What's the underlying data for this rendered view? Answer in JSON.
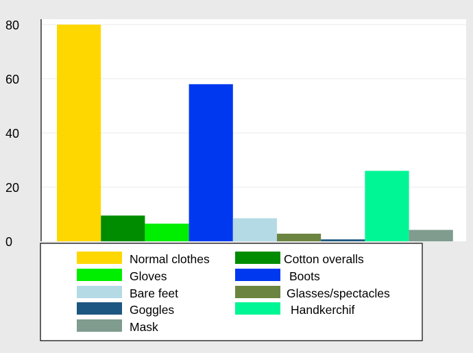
{
  "chart_data": {
    "type": "bar",
    "title": "",
    "xlabel": "",
    "ylabel": "",
    "ylim": [
      0,
      82
    ],
    "yticks": [
      0,
      20,
      40,
      60,
      80
    ],
    "grid": true,
    "legend_position": "bottom",
    "series": [
      {
        "name": "Normal clothes",
        "value": 80,
        "color": "#FFD700"
      },
      {
        "name": "Cotton overalls",
        "value": 9.5,
        "color": "#008C00"
      },
      {
        "name": "Gloves",
        "value": 6.5,
        "color": "#00EE00"
      },
      {
        "name": "Boots",
        "value": 58,
        "color": "#0038F0"
      },
      {
        "name": "Bare feet",
        "value": 8.5,
        "color": "#B4DAE6"
      },
      {
        "name": "Glasses/spectacles",
        "value": 2.8,
        "color": "#6B843F"
      },
      {
        "name": "Goggles",
        "value": 0.7,
        "color": "#1B5780"
      },
      {
        "name": "Handkerchif",
        "value": 26,
        "color": "#00F595"
      },
      {
        "name": "Mask",
        "value": 4.2,
        "color": "#7F9C8E"
      }
    ]
  },
  "colors": {
    "outer_background": "#EAEAEA",
    "plot_background": "#FFFFFF",
    "gridline": "#EAEAEA"
  }
}
